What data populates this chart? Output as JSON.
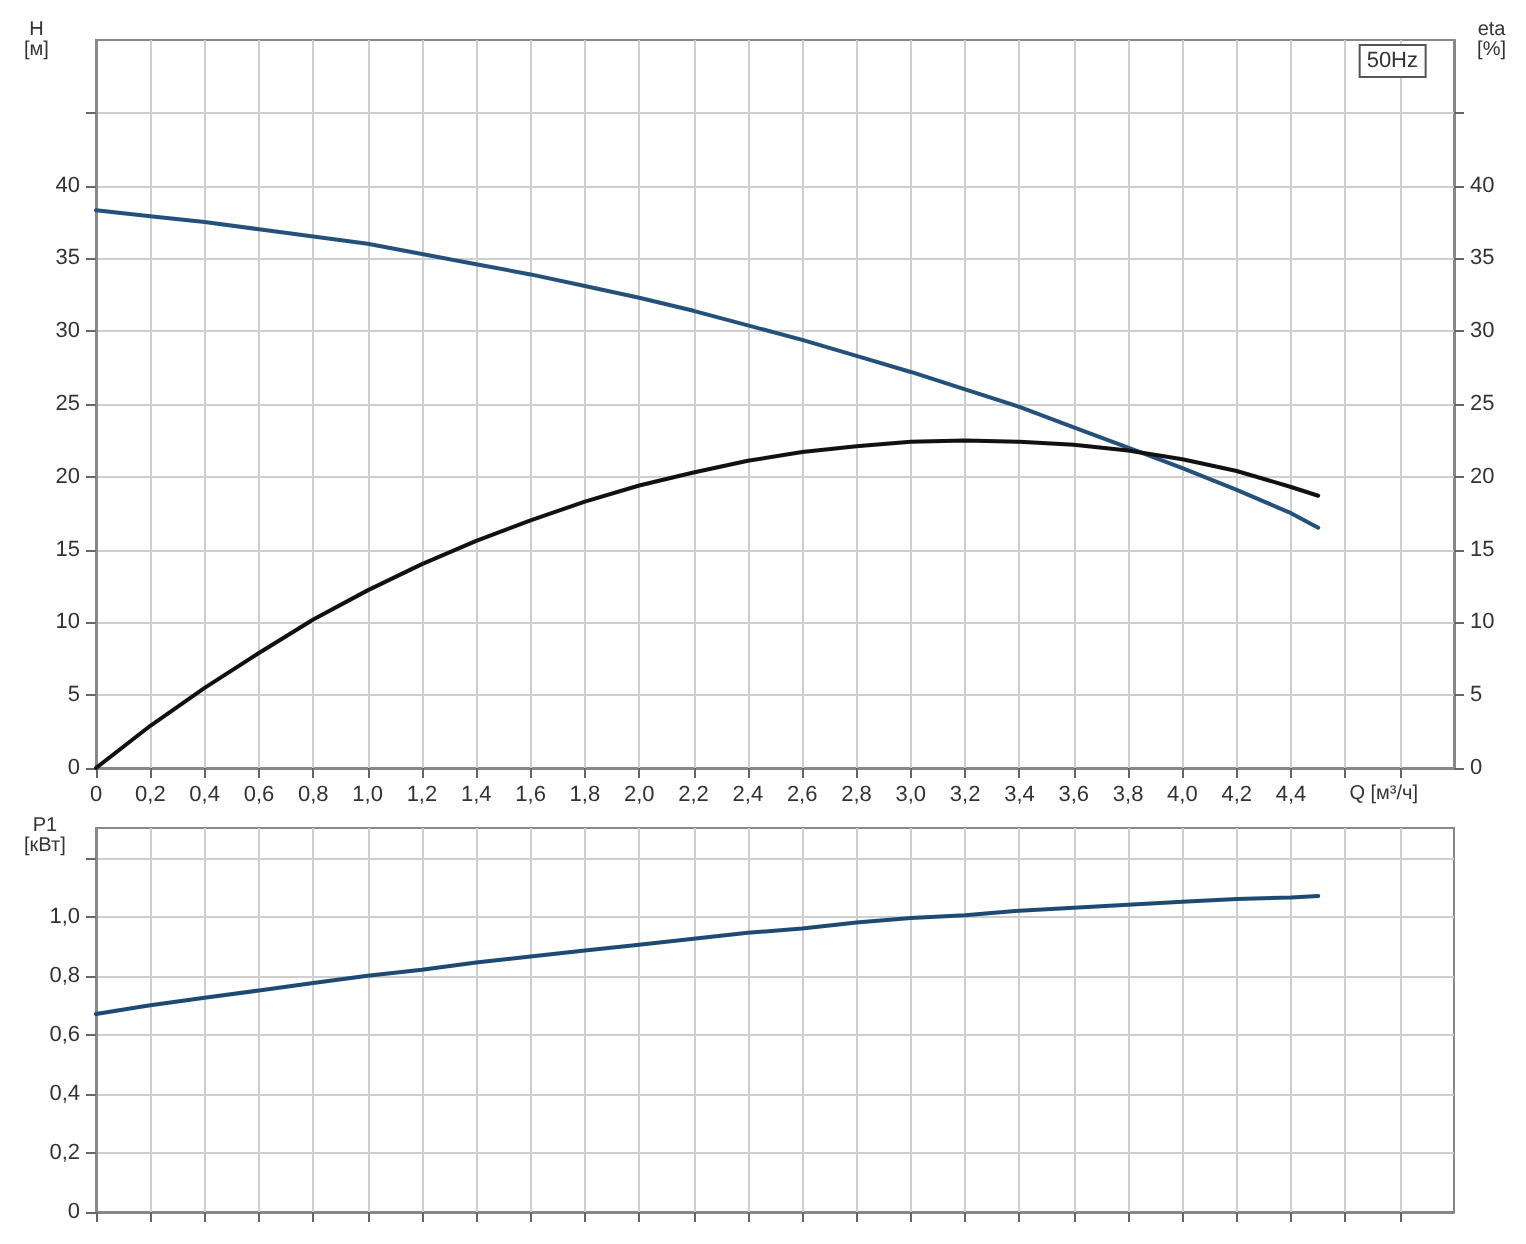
{
  "chart_data": [
    {
      "type": "line",
      "title": "50Hz",
      "xlabel": "Q [м³/ч]",
      "ylabel": "H [м]",
      "y2label": "eta [%]",
      "x": [
        0,
        0.2,
        0.4,
        0.6,
        0.8,
        1.0,
        1.2,
        1.4,
        1.6,
        1.8,
        2.0,
        2.2,
        2.4,
        2.6,
        2.8,
        3.0,
        3.2,
        3.4,
        3.6,
        3.8,
        4.0,
        4.2,
        4.4,
        4.5
      ],
      "series": [
        {
          "color": "#24507a",
          "values": [
            38.3,
            37.9,
            37.5,
            37.0,
            36.5,
            36.0,
            35.3,
            34.6,
            33.9,
            33.1,
            32.3,
            31.4,
            30.4,
            29.4,
            28.3,
            27.2,
            26.0,
            24.8,
            23.4,
            22.0,
            20.6,
            19.1,
            17.5,
            16.5
          ]
        },
        {
          "color": "#111111",
          "axis": "y2",
          "values": [
            0,
            2.9,
            5.5,
            7.9,
            10.2,
            12.2,
            14.0,
            15.6,
            17.0,
            18.3,
            19.4,
            20.3,
            21.1,
            21.7,
            22.1,
            22.4,
            22.5,
            22.4,
            22.2,
            21.8,
            21.2,
            20.4,
            19.3,
            18.7
          ]
        }
      ],
      "xlim": [
        0,
        5
      ],
      "xticks": [
        0,
        {
          "value": 0.2,
          "label": "0,2"
        },
        {
          "value": 0.4,
          "label": "0,4"
        },
        {
          "value": 0.6,
          "label": "0,6"
        },
        {
          "value": 0.8,
          "label": "0,8"
        },
        {
          "value": 1.0,
          "label": "1,0"
        },
        {
          "value": 1.2,
          "label": "1,2"
        },
        {
          "value": 1.4,
          "label": "1,4"
        },
        {
          "value": 1.6,
          "label": "1,6"
        },
        {
          "value": 1.8,
          "label": "1,8"
        },
        {
          "value": 2.0,
          "label": "2,0"
        },
        {
          "value": 2.2,
          "label": "2,2"
        },
        {
          "value": 2.4,
          "label": "2,4"
        },
        {
          "value": 2.6,
          "label": "2,6"
        },
        {
          "value": 2.8,
          "label": "2,8"
        },
        {
          "value": 3.0,
          "label": "3,0"
        },
        {
          "value": 3.2,
          "label": "3,2"
        },
        {
          "value": 3.4,
          "label": "3,4"
        },
        {
          "value": 3.6,
          "label": "3,6"
        },
        {
          "value": 3.8,
          "label": "3,8"
        },
        {
          "value": 4.0,
          "label": "4,0"
        },
        {
          "value": 4.2,
          "label": "4,2"
        },
        {
          "value": 4.4,
          "label": "4,4"
        },
        {
          "value": 4.6,
          "label": null
        },
        {
          "value": 4.8,
          "label": null
        }
      ],
      "ylim": [
        0,
        50
      ],
      "yticks": [
        0,
        5,
        10,
        15,
        20,
        25,
        30,
        35,
        40,
        {
          "value": 45,
          "label": null
        }
      ],
      "y2lim": [
        0,
        50
      ],
      "y2ticks": [
        0,
        5,
        10,
        15,
        20,
        25,
        30,
        35,
        40,
        {
          "value": 45,
          "label": null
        }
      ],
      "grid": true
    },
    {
      "type": "line",
      "ylabel": "P1 [кВт]",
      "x": [
        0,
        0.2,
        0.4,
        0.6,
        0.8,
        1.0,
        1.2,
        1.4,
        1.6,
        1.8,
        2.0,
        2.2,
        2.4,
        2.6,
        2.8,
        3.0,
        3.2,
        3.4,
        3.6,
        3.8,
        4.0,
        4.2,
        4.4,
        4.5
      ],
      "series": [
        {
          "color": "#1c4a72",
          "values": [
            0.67,
            0.7,
            0.725,
            0.75,
            0.775,
            0.8,
            0.82,
            0.845,
            0.865,
            0.885,
            0.905,
            0.925,
            0.945,
            0.96,
            0.98,
            0.995,
            1.005,
            1.02,
            1.03,
            1.04,
            1.05,
            1.06,
            1.065,
            1.07
          ]
        }
      ],
      "xlim": [
        0,
        5
      ],
      "xticks": [
        0,
        0.2,
        0.4,
        0.6,
        0.8,
        1.0,
        1.2,
        1.4,
        1.6,
        1.8,
        2.0,
        2.2,
        2.4,
        2.6,
        2.8,
        3.0,
        3.2,
        3.4,
        3.6,
        3.8,
        4.0,
        4.2,
        4.4,
        4.6,
        4.8
      ],
      "ylim": [
        0,
        1.3
      ],
      "yticks": [
        0,
        {
          "value": 0.2,
          "label": "0,2"
        },
        {
          "value": 0.4,
          "label": "0,4"
        },
        {
          "value": 0.6,
          "label": "0,6"
        },
        {
          "value": 0.8,
          "label": "0,8"
        },
        {
          "value": 1.0,
          "label": "1,0"
        },
        {
          "value": 1.2,
          "label": null
        }
      ],
      "tick_labels": "y",
      "grid": true
    }
  ]
}
